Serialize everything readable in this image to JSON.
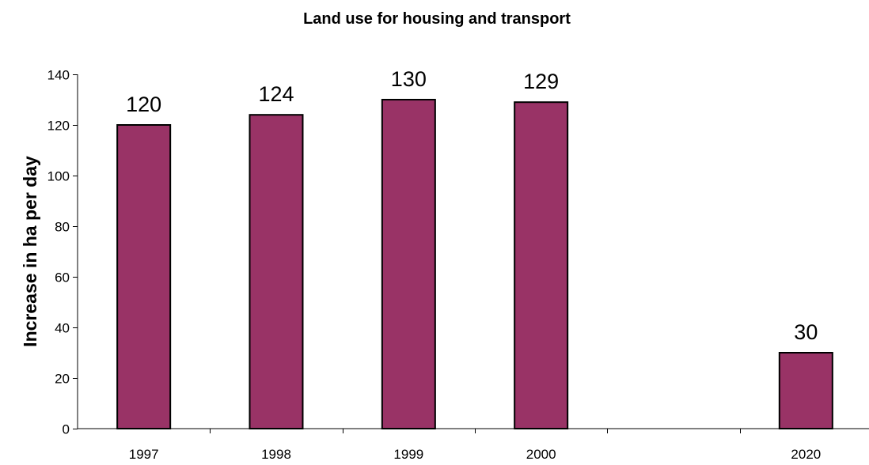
{
  "chart_data": {
    "type": "bar",
    "title": "Land use for housing and transport",
    "xlabel": "",
    "ylabel": "Increase in ha per day",
    "categories": [
      "1997",
      "1998",
      "1999",
      "2000",
      "",
      "2020"
    ],
    "values": [
      120,
      124,
      130,
      129,
      null,
      30
    ],
    "data_labels": [
      "120",
      "124",
      "130",
      "129",
      "",
      "30"
    ],
    "ylim": [
      0,
      140
    ],
    "yticks": [
      0,
      20,
      40,
      60,
      80,
      100,
      120,
      140
    ],
    "bar_color": "#993366",
    "grid": false,
    "legend": "none"
  }
}
